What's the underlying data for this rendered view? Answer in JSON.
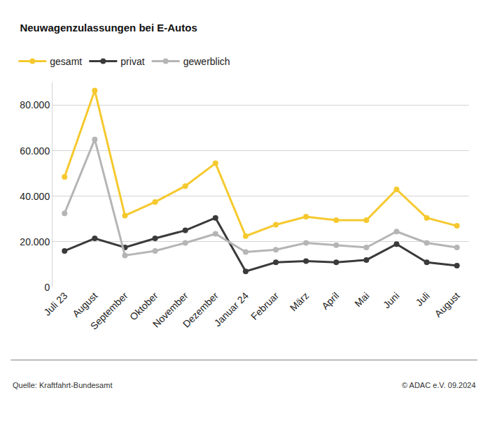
{
  "chart_data": {
    "type": "line",
    "title": "Neuwagenzulassungen bei E-Autos",
    "categories": [
      "Juli 23",
      "August",
      "September",
      "Oktober",
      "November",
      "Dezember",
      "Januar 24",
      "Februar",
      "März",
      "April",
      "Mai",
      "Juni",
      "Juli",
      "August"
    ],
    "series": [
      {
        "name": "gesamt",
        "color": "#f5c92e",
        "values": [
          48500,
          86500,
          31500,
          37500,
          44500,
          54500,
          22500,
          27500,
          31000,
          29500,
          29500,
          43000,
          30500,
          27000
        ]
      },
      {
        "name": "privat",
        "color": "#3a3a3a",
        "values": [
          16000,
          21500,
          17500,
          21500,
          25000,
          30500,
          7000,
          11000,
          11500,
          11000,
          12000,
          19000,
          11000,
          9500
        ]
      },
      {
        "name": "gewerblich",
        "color": "#b5b5b5",
        "values": [
          32500,
          65000,
          14000,
          16000,
          19500,
          23500,
          15500,
          16500,
          19500,
          18500,
          17500,
          24500,
          19500,
          17500
        ]
      }
    ],
    "ylim": [
      0,
      90000
    ],
    "yticks": [
      0,
      {
        "value": 20000,
        "label": "20.000"
      },
      {
        "value": 40000,
        "label": "40.000"
      },
      {
        "value": 60000,
        "label": "60.000"
      },
      {
        "value": 80000,
        "label": "80.000"
      }
    ],
    "grid": true,
    "legend": "top left",
    "marker": "circle",
    "source": "Quelle: Kraftfahrt-Bundesamt",
    "credit": "© ADAC e.V. 09.2024"
  }
}
